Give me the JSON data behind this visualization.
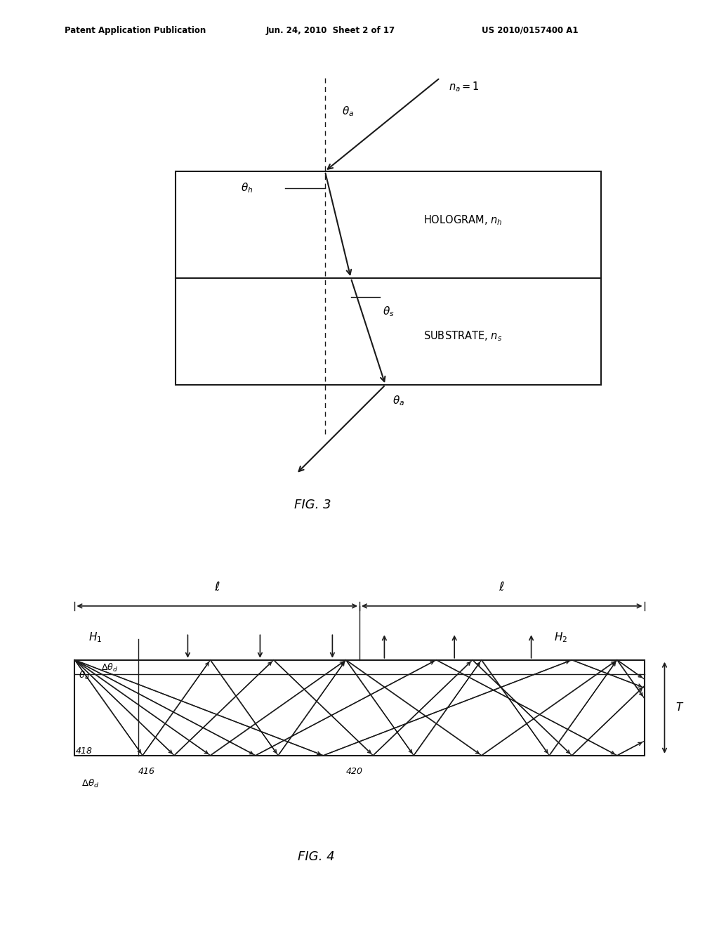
{
  "fig_width": 10.24,
  "fig_height": 13.2,
  "bg_color": "#ffffff",
  "header_text1": "Patent Application Publication",
  "header_text2": "Jun. 24, 2010  Sheet 2 of 17",
  "header_text3": "US 2010/0157400 A1",
  "fig3_label": "FIG. 3",
  "fig4_label": "FIG. 4",
  "line_color": "#1a1a1a"
}
